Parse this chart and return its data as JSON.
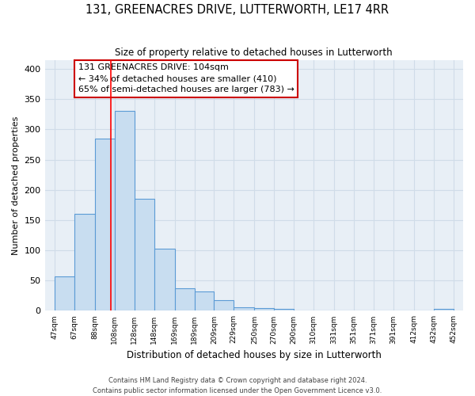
{
  "title": "131, GREENACRES DRIVE, LUTTERWORTH, LE17 4RR",
  "subtitle": "Size of property relative to detached houses in Lutterworth",
  "xlabel": "Distribution of detached houses by size in Lutterworth",
  "ylabel": "Number of detached properties",
  "footer_line1": "Contains HM Land Registry data © Crown copyright and database right 2024.",
  "footer_line2": "Contains public sector information licensed under the Open Government Licence v3.0.",
  "bar_left_edges": [
    47,
    67,
    88,
    108,
    128,
    148,
    169,
    189,
    209,
    229,
    250,
    270,
    290,
    310,
    331,
    351,
    371,
    391,
    412,
    432
  ],
  "bar_widths": [
    20,
    21,
    20,
    20,
    20,
    21,
    20,
    20,
    20,
    21,
    20,
    20,
    20,
    21,
    20,
    20,
    20,
    21,
    20,
    20
  ],
  "bar_heights": [
    57,
    160,
    285,
    330,
    185,
    103,
    37,
    32,
    18,
    6,
    5,
    3,
    0,
    0,
    0,
    0,
    0,
    0,
    0,
    3
  ],
  "bar_color": "#c8ddf0",
  "bar_edge_color": "#5b9bd5",
  "red_line_x": 104,
  "annotation_line1": "131 GREENACRES DRIVE: 104sqm",
  "annotation_line2": "← 34% of detached houses are smaller (410)",
  "annotation_line3": "65% of semi-detached houses are larger (783) →",
  "ylim": [
    0,
    415
  ],
  "yticks": [
    0,
    50,
    100,
    150,
    200,
    250,
    300,
    350,
    400
  ],
  "tick_labels": [
    "47sqm",
    "67sqm",
    "88sqm",
    "108sqm",
    "128sqm",
    "148sqm",
    "169sqm",
    "189sqm",
    "209sqm",
    "229sqm",
    "250sqm",
    "270sqm",
    "290sqm",
    "310sqm",
    "331sqm",
    "351sqm",
    "371sqm",
    "391sqm",
    "412sqm",
    "432sqm",
    "452sqm"
  ],
  "tick_positions": [
    47,
    67,
    88,
    108,
    128,
    148,
    169,
    189,
    209,
    229,
    250,
    270,
    290,
    310,
    331,
    351,
    371,
    391,
    412,
    432,
    452
  ],
  "xlim": [
    37,
    462
  ],
  "background_color": "#e8eff6",
  "grid_color": "#d0dce8"
}
